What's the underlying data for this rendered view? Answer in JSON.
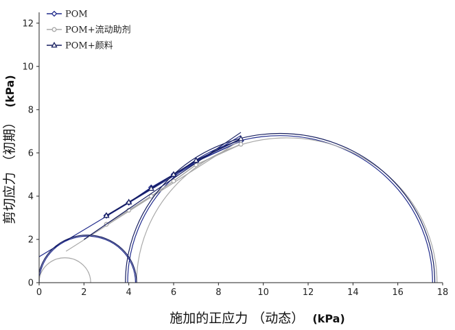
{
  "chart_data": {
    "type": "scatter",
    "xlabel_main": "施加的正应力 （动态）",
    "xlabel_unit": "(kPa)",
    "ylabel_main": "剪切应力 （初期）",
    "ylabel_unit": "(kPa)",
    "xlim": [
      0,
      18
    ],
    "ylim": [
      0,
      12.5
    ],
    "xticks": [
      "0",
      "2",
      "4",
      "6",
      "8",
      "10",
      "12",
      "14",
      "16",
      "18"
    ],
    "yticks": [
      "0",
      "2",
      "4",
      "6",
      "8",
      "10",
      "12"
    ],
    "legend_position": "top-left",
    "series": [
      {
        "name": "POM",
        "color": "#1f2a8c",
        "marker": "diamond",
        "x": [
          3,
          4,
          5,
          6,
          7,
          9
        ],
        "y": [
          3.1,
          3.7,
          4.4,
          5.0,
          5.6,
          6.55
        ],
        "fit_line": {
          "x": [
            0,
            9.0
          ],
          "y": [
            1.2,
            6.8
          ]
        },
        "circles": [
          {
            "center": 2.15,
            "radius": 2.15
          },
          {
            "center": 10.75,
            "radius": 6.8
          }
        ]
      },
      {
        "name": "POM+流动助剂",
        "color": "#a8a8a8",
        "marker": "circle",
        "x": [
          3,
          4,
          5,
          6,
          7,
          9
        ],
        "y": [
          2.7,
          3.35,
          4.0,
          4.7,
          5.45,
          6.4
        ],
        "fit_line": {
          "x": [
            1.2,
            9.0
          ],
          "y": [
            1.45,
            6.6
          ]
        },
        "circles": [
          {
            "center": 1.15,
            "radius": 1.15
          },
          {
            "center": 11.05,
            "radius": 6.7
          }
        ]
      },
      {
        "name": "POM+颜料",
        "color": "#141c5e",
        "marker": "triangle",
        "x": [
          3,
          4,
          5,
          6,
          7,
          9
        ],
        "y": [
          3.1,
          3.72,
          4.35,
          5.0,
          5.65,
          6.65
        ],
        "fit_line": {
          "x": [
            2.0,
            9.0
          ],
          "y": [
            2.0,
            6.95
          ]
        },
        "circles": [
          {
            "center": 2.15,
            "radius": 2.2
          },
          {
            "center": 10.75,
            "radius": 6.9
          }
        ]
      }
    ]
  }
}
